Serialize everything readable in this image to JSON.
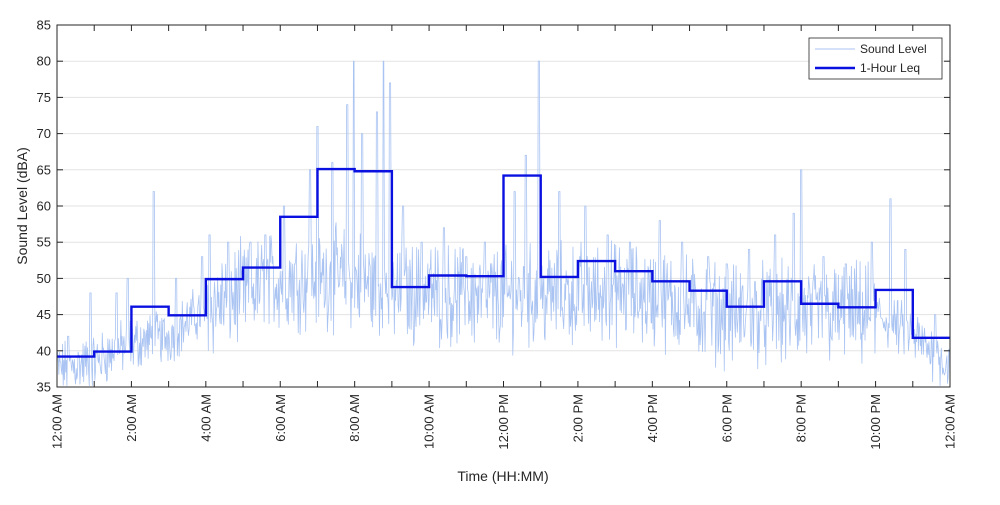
{
  "chart_data": {
    "type": "line",
    "xlabel": "Time (HH:MM)",
    "ylabel": "Sound Level (dBA)",
    "xlim": [
      0,
      24
    ],
    "ylim": [
      35,
      85
    ],
    "y_ticks": [
      35,
      40,
      45,
      50,
      55,
      60,
      65,
      70,
      75,
      80,
      85
    ],
    "x_ticks": [
      {
        "hour": 0,
        "label": "12:00 AM"
      },
      {
        "hour": 2,
        "label": "2:00 AM"
      },
      {
        "hour": 4,
        "label": "4:00 AM"
      },
      {
        "hour": 6,
        "label": "6:00 AM"
      },
      {
        "hour": 8,
        "label": "8:00 AM"
      },
      {
        "hour": 10,
        "label": "10:00 AM"
      },
      {
        "hour": 12,
        "label": "12:00 PM"
      },
      {
        "hour": 14,
        "label": "2:00 PM"
      },
      {
        "hour": 16,
        "label": "4:00 PM"
      },
      {
        "hour": 18,
        "label": "6:00 PM"
      },
      {
        "hour": 20,
        "label": "8:00 PM"
      },
      {
        "hour": 22,
        "label": "10:00 PM"
      },
      {
        "hour": 24,
        "label": "12:00 AM"
      }
    ],
    "grid": "horizontal",
    "legend_position": "top-right",
    "series": [
      {
        "name": "Sound Level",
        "color": "#a9c3f2",
        "style": "thin",
        "hourly_profile": [
          [
            0,
            37.5
          ],
          [
            1,
            38.5
          ],
          [
            2,
            41.0
          ],
          [
            3,
            42.0
          ],
          [
            4,
            46.0
          ],
          [
            5,
            48.0
          ],
          [
            6,
            50.0
          ],
          [
            7,
            50.0
          ],
          [
            8,
            50.0
          ],
          [
            9,
            48.0
          ],
          [
            10,
            48.0
          ],
          [
            11,
            47.5
          ],
          [
            12,
            47.5
          ],
          [
            13,
            47.5
          ],
          [
            14,
            48.0
          ],
          [
            15,
            48.0
          ],
          [
            16,
            47.5
          ],
          [
            17,
            46.0
          ],
          [
            18,
            45.0
          ],
          [
            19,
            45.0
          ],
          [
            20,
            45.0
          ],
          [
            21,
            45.0
          ],
          [
            22,
            45.0
          ],
          [
            23,
            42.0
          ],
          [
            24,
            38.0
          ]
        ],
        "spikes": [
          [
            0.3,
            42
          ],
          [
            0.9,
            48
          ],
          [
            1.6,
            48
          ],
          [
            1.9,
            50
          ],
          [
            2.6,
            62
          ],
          [
            3.2,
            50
          ],
          [
            3.9,
            53
          ],
          [
            4.1,
            56
          ],
          [
            4.6,
            55
          ],
          [
            5.2,
            55
          ],
          [
            5.6,
            56
          ],
          [
            6.1,
            60
          ],
          [
            6.8,
            65
          ],
          [
            7.0,
            71
          ],
          [
            7.4,
            66
          ],
          [
            7.8,
            74
          ],
          [
            7.97,
            80
          ],
          [
            8.2,
            70
          ],
          [
            8.6,
            73
          ],
          [
            8.78,
            80
          ],
          [
            8.95,
            77
          ],
          [
            9.3,
            60
          ],
          [
            9.8,
            55
          ],
          [
            10.4,
            57
          ],
          [
            11.0,
            53
          ],
          [
            11.5,
            55
          ],
          [
            12.3,
            62
          ],
          [
            12.6,
            67
          ],
          [
            12.95,
            80
          ],
          [
            13.5,
            62
          ],
          [
            14.2,
            60
          ],
          [
            14.8,
            56
          ],
          [
            15.4,
            55
          ],
          [
            16.2,
            58
          ],
          [
            16.8,
            55
          ],
          [
            17.5,
            53
          ],
          [
            18.0,
            52
          ],
          [
            18.6,
            54
          ],
          [
            19.3,
            56
          ],
          [
            19.8,
            59
          ],
          [
            20.0,
            65
          ],
          [
            20.6,
            53
          ],
          [
            21.2,
            52
          ],
          [
            21.9,
            55
          ],
          [
            22.4,
            61
          ],
          [
            22.8,
            54
          ],
          [
            23.6,
            45
          ]
        ]
      },
      {
        "name": "1-Hour Leq",
        "color": "#0a10e0",
        "style": "step",
        "hour_starts": [
          0,
          1,
          2,
          3,
          4,
          5,
          6,
          7,
          8,
          9,
          10,
          11,
          12,
          13,
          14,
          15,
          16,
          17,
          18,
          19,
          20,
          21,
          22,
          23
        ],
        "values": [
          39.2,
          39.9,
          46.1,
          44.9,
          49.9,
          51.5,
          58.5,
          65.1,
          64.8,
          48.8,
          50.4,
          50.3,
          64.2,
          50.2,
          52.4,
          51.0,
          49.6,
          48.3,
          46.1,
          49.6,
          46.5,
          46.0,
          48.4,
          41.8
        ]
      }
    ]
  }
}
